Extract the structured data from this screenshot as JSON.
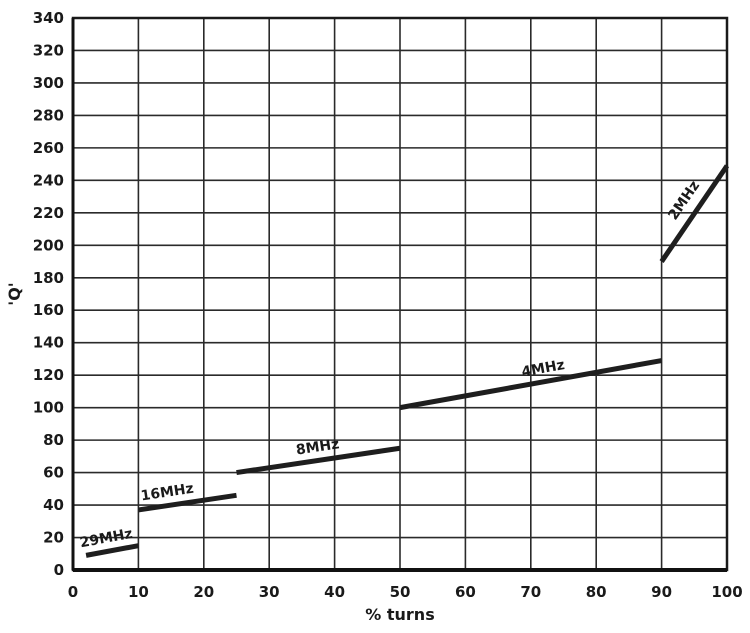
{
  "chart_data": {
    "type": "line",
    "title": "",
    "xlabel": "% turns",
    "ylabel": "'Q'",
    "xlim": [
      0,
      100
    ],
    "ylim": [
      0,
      340
    ],
    "xticks": [
      0,
      10,
      20,
      30,
      40,
      50,
      60,
      70,
      80,
      90,
      100
    ],
    "yticks": [
      0,
      20,
      40,
      60,
      80,
      100,
      120,
      140,
      160,
      180,
      200,
      220,
      240,
      260,
      280,
      300,
      320,
      340
    ],
    "grid": true,
    "series": [
      {
        "name": "29MHz",
        "x": [
          2,
          10
        ],
        "y": [
          9,
          15
        ]
      },
      {
        "name": "16MHz",
        "x": [
          10,
          25
        ],
        "y": [
          37,
          46
        ]
      },
      {
        "name": "8MHz",
        "x": [
          25,
          50
        ],
        "y": [
          60,
          75
        ]
      },
      {
        "name": "4MHz",
        "x": [
          50,
          90
        ],
        "y": [
          100,
          129
        ]
      },
      {
        "name": "2MHz",
        "x": [
          90,
          100
        ],
        "y": [
          190,
          249
        ]
      }
    ]
  }
}
